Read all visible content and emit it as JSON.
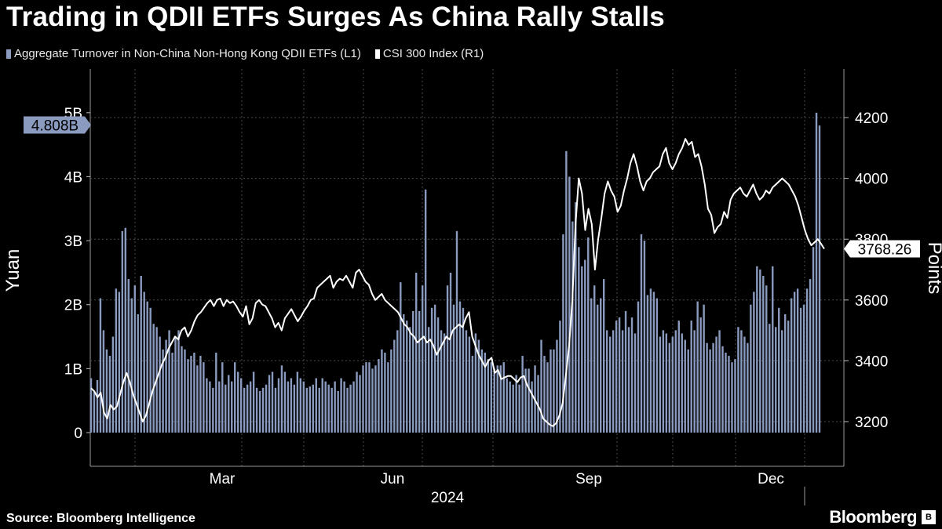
{
  "title": "Trading in QDII ETFs Surges As China Rally Stalls",
  "legend": [
    {
      "label": "Aggregate Turnover in Non-China Non-Hong Kong QDII ETFs (L1)",
      "color": "#8a9bbf"
    },
    {
      "label": "CSI 300 Index (R1)",
      "color": "#ffffff"
    }
  ],
  "source": "Source: Bloomberg Intelligence",
  "brand": "Bloomberg",
  "chart_data": {
    "type": "bar+line",
    "x_labels": [
      "Mar",
      "Jun",
      "Sep",
      "Dec"
    ],
    "x_year": "2024",
    "left_axis": {
      "label": "Yuan",
      "ticks": [
        "0",
        "1B",
        "2B",
        "3B",
        "4B",
        "5B"
      ],
      "ylim": [
        0,
        5.5
      ]
    },
    "right_axis": {
      "label": "Points",
      "ticks": [
        "3200",
        "3400",
        "3600",
        "3800",
        "4000",
        "4200"
      ],
      "ylim": [
        3150,
        4350
      ]
    },
    "last_values": {
      "turnover_label": "4.808B",
      "csi_label": "3768.26"
    },
    "series": [
      {
        "name": "Aggregate Turnover in Non-China Non-Hong Kong QDII ETFs (L1)",
        "axis": "left",
        "unit": "billion yuan",
        "values": [
          0.85,
          0.65,
          0.82,
          2.1,
          1.6,
          1.3,
          1.2,
          1.5,
          2.25,
          2.2,
          3.15,
          3.2,
          2.4,
          2.1,
          2.3,
          1.85,
          2.45,
          2.2,
          2.05,
          1.95,
          1.7,
          1.65,
          1.5,
          1.3,
          1.45,
          1.6,
          1.25,
          1.5,
          1.6,
          1.35,
          1.3,
          1.15,
          1.2,
          1.25,
          1.05,
          1.2,
          1.1,
          0.85,
          0.8,
          0.7,
          1.25,
          0.8,
          1.1,
          0.75,
          0.9,
          0.8,
          1.1,
          0.95,
          0.85,
          0.7,
          0.75,
          0.8,
          0.95,
          0.7,
          0.65,
          0.7,
          0.75,
          0.9,
          0.95,
          0.7,
          0.85,
          1.05,
          0.95,
          0.8,
          0.85,
          0.75,
          0.95,
          0.85,
          0.8,
          0.7,
          0.72,
          0.75,
          0.85,
          0.7,
          0.85,
          0.8,
          0.75,
          0.7,
          0.8,
          0.65,
          0.85,
          0.8,
          0.7,
          0.75,
          0.8,
          0.95,
          0.9,
          1.05,
          1.1,
          1.1,
          1.0,
          1.05,
          1.15,
          1.3,
          1.25,
          1.1,
          1.3,
          1.45,
          1.6,
          2.35,
          1.85,
          1.75,
          1.65,
          1.9,
          2.5,
          1.9,
          2.3,
          3.8,
          1.65,
          1.95,
          2.0,
          1.8,
          1.6,
          1.55,
          2.3,
          2.5,
          2.0,
          3.15,
          2.05,
          1.95,
          1.6,
          1.5,
          1.2,
          1.55,
          1.45,
          1.3,
          1.25,
          1.15,
          1.1,
          1.0,
          1.05,
          1.05,
          1.1,
          0.85,
          0.8,
          0.75,
          0.9,
          0.75,
          1.2,
          1.0,
          1.0,
          0.8,
          1.05,
          0.9,
          1.45,
          1.2,
          1.1,
          1.3,
          1.3,
          1.45,
          1.75,
          3.1,
          4.4,
          4.0,
          3.3,
          3.6,
          2.9,
          2.6,
          2.7,
          3.05,
          2.1,
          2.3,
          2.0,
          2.1,
          2.4,
          1.6,
          1.5,
          1.6,
          1.75,
          1.8,
          1.6,
          1.9,
          1.65,
          1.8,
          1.55,
          2.05,
          3.1,
          3.0,
          2.15,
          2.25,
          2.2,
          2.1,
          1.5,
          1.6,
          1.55,
          1.4,
          1.5,
          1.6,
          1.75,
          1.55,
          1.45,
          1.3,
          1.75,
          1.6,
          2.05,
          1.8,
          2.0,
          1.4,
          1.3,
          1.4,
          1.5,
          1.6,
          1.35,
          1.25,
          1.2,
          1.1,
          1.15,
          1.65,
          1.6,
          1.5,
          1.4,
          2.0,
          2.2,
          2.6,
          2.55,
          2.45,
          2.3,
          1.7,
          2.6,
          1.65,
          1.95,
          1.6,
          1.85,
          1.75,
          2.1,
          2.2,
          2.25,
          1.95,
          2.0,
          2.25,
          2.4,
          2.9,
          5.0,
          4.8
        ]
      },
      {
        "name": "CSI 300 Index (R1)",
        "axis": "right",
        "unit": "points",
        "points": [
          [
            0,
            3310
          ],
          [
            3,
            3300
          ],
          [
            6,
            3280
          ],
          [
            9,
            3295
          ],
          [
            12,
            3230
          ],
          [
            15,
            3210
          ],
          [
            18,
            3255
          ],
          [
            21,
            3240
          ],
          [
            24,
            3250
          ],
          [
            27,
            3290
          ],
          [
            30,
            3330
          ],
          [
            33,
            3360
          ],
          [
            36,
            3330
          ],
          [
            39,
            3290
          ],
          [
            42,
            3260
          ],
          [
            45,
            3230
          ],
          [
            48,
            3200
          ],
          [
            51,
            3220
          ],
          [
            54,
            3260
          ],
          [
            57,
            3300
          ],
          [
            60,
            3330
          ],
          [
            63,
            3360
          ],
          [
            66,
            3390
          ],
          [
            69,
            3410
          ],
          [
            72,
            3440
          ],
          [
            75,
            3460
          ],
          [
            78,
            3480
          ],
          [
            81,
            3470
          ],
          [
            84,
            3500
          ],
          [
            87,
            3510
          ],
          [
            90,
            3480
          ],
          [
            93,
            3500
          ],
          [
            96,
            3530
          ],
          [
            99,
            3550
          ],
          [
            102,
            3560
          ],
          [
            105,
            3575
          ],
          [
            108,
            3590
          ],
          [
            111,
            3600
          ],
          [
            114,
            3580
          ],
          [
            117,
            3600
          ],
          [
            120,
            3605
          ],
          [
            123,
            3580
          ],
          [
            126,
            3600
          ],
          [
            129,
            3590
          ],
          [
            132,
            3595
          ],
          [
            135,
            3580
          ],
          [
            138,
            3560
          ],
          [
            141,
            3545
          ],
          [
            144,
            3580
          ],
          [
            147,
            3520
          ],
          [
            150,
            3540
          ],
          [
            153,
            3590
          ],
          [
            156,
            3600
          ],
          [
            159,
            3585
          ],
          [
            162,
            3580
          ],
          [
            165,
            3560
          ],
          [
            168,
            3540
          ],
          [
            171,
            3510
          ],
          [
            174,
            3525
          ],
          [
            177,
            3500
          ],
          [
            180,
            3540
          ],
          [
            183,
            3555
          ],
          [
            186,
            3570
          ],
          [
            189,
            3550
          ],
          [
            192,
            3530
          ],
          [
            195,
            3545
          ],
          [
            198,
            3565
          ],
          [
            201,
            3580
          ],
          [
            204,
            3600
          ],
          [
            207,
            3605
          ],
          [
            210,
            3640
          ],
          [
            213,
            3650
          ],
          [
            216,
            3660
          ],
          [
            219,
            3670
          ],
          [
            222,
            3680
          ],
          [
            225,
            3640
          ],
          [
            228,
            3660
          ],
          [
            231,
            3670
          ],
          [
            234,
            3665
          ],
          [
            237,
            3680
          ],
          [
            240,
            3660
          ],
          [
            243,
            3640
          ],
          [
            246,
            3690
          ],
          [
            249,
            3700
          ],
          [
            252,
            3680
          ],
          [
            255,
            3660
          ],
          [
            258,
            3650
          ],
          [
            261,
            3620
          ],
          [
            264,
            3600
          ],
          [
            267,
            3610
          ],
          [
            270,
            3620
          ],
          [
            273,
            3600
          ],
          [
            276,
            3590
          ],
          [
            279,
            3580
          ],
          [
            282,
            3570
          ],
          [
            285,
            3560
          ],
          [
            288,
            3540
          ],
          [
            291,
            3520
          ],
          [
            294,
            3510
          ],
          [
            297,
            3490
          ],
          [
            300,
            3480
          ],
          [
            303,
            3460
          ],
          [
            306,
            3470
          ],
          [
            309,
            3480
          ],
          [
            312,
            3460
          ],
          [
            315,
            3470
          ],
          [
            318,
            3450
          ],
          [
            321,
            3420
          ],
          [
            324,
            3440
          ],
          [
            327,
            3460
          ],
          [
            330,
            3480
          ],
          [
            333,
            3470
          ],
          [
            336,
            3500
          ],
          [
            339,
            3510
          ],
          [
            342,
            3520
          ],
          [
            345,
            3510
          ],
          [
            348,
            3540
          ],
          [
            351,
            3560
          ],
          [
            354,
            3480
          ],
          [
            357,
            3450
          ],
          [
            360,
            3420
          ],
          [
            363,
            3400
          ],
          [
            366,
            3380
          ],
          [
            369,
            3400
          ],
          [
            372,
            3410
          ],
          [
            375,
            3360
          ],
          [
            378,
            3370
          ],
          [
            381,
            3340
          ],
          [
            384,
            3345
          ],
          [
            387,
            3350
          ],
          [
            390,
            3350
          ],
          [
            393,
            3340
          ],
          [
            396,
            3330
          ],
          [
            399,
            3345
          ],
          [
            402,
            3350
          ],
          [
            405,
            3320
          ],
          [
            408,
            3300
          ],
          [
            411,
            3280
          ],
          [
            414,
            3260
          ],
          [
            417,
            3240
          ],
          [
            420,
            3210
          ],
          [
            423,
            3200
          ],
          [
            426,
            3190
          ],
          [
            429,
            3185
          ],
          [
            432,
            3195
          ],
          [
            435,
            3220
          ],
          [
            438,
            3260
          ],
          [
            441,
            3350
          ],
          [
            444,
            3450
          ],
          [
            447,
            3600
          ],
          [
            450,
            3850
          ],
          [
            453,
            4000
          ],
          [
            456,
            3950
          ],
          [
            459,
            3830
          ],
          [
            462,
            3900
          ],
          [
            465,
            3850
          ],
          [
            468,
            3700
          ],
          [
            471,
            3800
          ],
          [
            474,
            3870
          ],
          [
            477,
            3950
          ],
          [
            480,
            3990
          ],
          [
            483,
            3960
          ],
          [
            486,
            3940
          ],
          [
            489,
            3890
          ],
          [
            492,
            3910
          ],
          [
            495,
            3960
          ],
          [
            498,
            4000
          ],
          [
            501,
            4050
          ],
          [
            504,
            4080
          ],
          [
            507,
            4040
          ],
          [
            510,
            3990
          ],
          [
            513,
            3960
          ],
          [
            516,
            3990
          ],
          [
            519,
            4000
          ],
          [
            522,
            4020
          ],
          [
            525,
            4030
          ],
          [
            528,
            4040
          ],
          [
            531,
            4080
          ],
          [
            534,
            4100
          ],
          [
            537,
            4050
          ],
          [
            540,
            4030
          ],
          [
            543,
            4050
          ],
          [
            546,
            4080
          ],
          [
            549,
            4100
          ],
          [
            552,
            4130
          ],
          [
            555,
            4110
          ],
          [
            558,
            4120
          ],
          [
            561,
            4070
          ],
          [
            564,
            4080
          ],
          [
            567,
            4040
          ],
          [
            570,
            3980
          ],
          [
            573,
            3900
          ],
          [
            576,
            3880
          ],
          [
            579,
            3820
          ],
          [
            582,
            3840
          ],
          [
            585,
            3850
          ],
          [
            588,
            3890
          ],
          [
            591,
            3870
          ],
          [
            594,
            3930
          ],
          [
            597,
            3950
          ],
          [
            600,
            3960
          ],
          [
            603,
            3970
          ],
          [
            606,
            3950
          ],
          [
            609,
            3940
          ],
          [
            612,
            3960
          ],
          [
            615,
            3980
          ],
          [
            618,
            3950
          ],
          [
            621,
            3930
          ],
          [
            624,
            3940
          ],
          [
            627,
            3960
          ],
          [
            630,
            3950
          ],
          [
            633,
            3970
          ],
          [
            636,
            3980
          ],
          [
            639,
            3990
          ],
          [
            642,
            4000
          ],
          [
            645,
            3990
          ],
          [
            648,
            3980
          ],
          [
            651,
            3960
          ],
          [
            654,
            3940
          ],
          [
            657,
            3910
          ],
          [
            660,
            3870
          ],
          [
            663,
            3830
          ],
          [
            666,
            3800
          ],
          [
            669,
            3780
          ],
          [
            672,
            3790
          ],
          [
            675,
            3800
          ],
          [
            678,
            3785
          ],
          [
            681,
            3768.26
          ]
        ],
        "x_note": "x is an index over the 2024 trading period (0 = start, 681 = end)"
      }
    ]
  }
}
